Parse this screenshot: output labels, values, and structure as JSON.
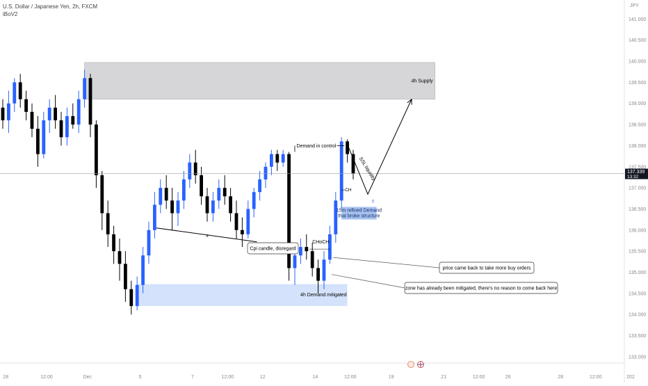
{
  "header": {
    "symbol": "U.S. Dollar / Japanese Yen, 2h, FXCM",
    "indicator": "iBoV2"
  },
  "chart_data": {
    "type": "candlestick",
    "title": "U.S. Dollar / Japanese Yen, 2h, FXCM",
    "currency_label": "JPY",
    "ylim": [
      132.85,
      141.45
    ],
    "y_ticks": [
      "141.000",
      "140.500",
      "140.000",
      "139.500",
      "139.000",
      "138.500",
      "138.000",
      "137.500",
      "137.000",
      "136.500",
      "136.000",
      "135.500",
      "135.000",
      "134.500",
      "134.000",
      "133.500",
      "133.000"
    ],
    "x_ticks": [
      {
        "label": "28",
        "t": 0.5
      },
      {
        "label": "12:00",
        "t": 7.5
      },
      {
        "label": "Dec",
        "t": 14.5
      },
      {
        "label": "5",
        "t": 23.5
      },
      {
        "label": "7",
        "t": 32.5
      },
      {
        "label": "12:00",
        "t": 38.5
      },
      {
        "label": "12",
        "t": 44.5
      },
      {
        "label": "14",
        "t": 53.5
      },
      {
        "label": "12:00",
        "t": 59.5
      },
      {
        "label": "19",
        "t": 66.5
      },
      {
        "label": "21",
        "t": 75.5
      },
      {
        "label": "12:00",
        "t": 81.5
      },
      {
        "label": "26",
        "t": 86.5
      },
      {
        "label": "28",
        "t": 95.5
      },
      {
        "label": "12:00",
        "t": 101.5
      },
      {
        "label": "202",
        "t": 107.5
      }
    ],
    "last_price": {
      "value": 137.339,
      "label": "137.339",
      "countdown": "13:32"
    },
    "candles": [
      [
        138.9,
        139.1,
        138.4,
        138.6
      ],
      [
        138.6,
        139.3,
        138.3,
        139.0
      ],
      [
        139.0,
        139.6,
        138.8,
        139.5
      ],
      [
        139.5,
        139.7,
        138.9,
        139.1
      ],
      [
        139.1,
        139.3,
        138.6,
        138.8
      ],
      [
        138.8,
        139.0,
        138.2,
        138.4
      ],
      [
        138.4,
        138.7,
        137.5,
        137.8
      ],
      [
        137.8,
        138.8,
        137.7,
        138.6
      ],
      [
        138.6,
        139.1,
        138.3,
        138.9
      ],
      [
        138.9,
        139.2,
        138.4,
        138.6
      ],
      [
        138.6,
        138.8,
        138.0,
        138.2
      ],
      [
        138.2,
        138.9,
        138.0,
        138.7
      ],
      [
        138.7,
        139.0,
        138.4,
        138.5
      ],
      [
        138.5,
        139.3,
        138.3,
        139.1
      ],
      [
        139.1,
        139.8,
        138.9,
        139.6
      ],
      [
        139.6,
        139.7,
        138.2,
        138.5
      ],
      [
        138.5,
        138.6,
        137.0,
        137.3
      ],
      [
        137.3,
        137.4,
        136.0,
        136.4
      ],
      [
        136.4,
        136.7,
        135.6,
        135.9
      ],
      [
        135.9,
        136.1,
        135.2,
        135.5
      ],
      [
        135.5,
        135.8,
        134.8,
        135.2
      ],
      [
        135.2,
        135.5,
        134.3,
        134.6
      ],
      [
        134.6,
        134.8,
        134.0,
        134.2
      ],
      [
        134.2,
        134.9,
        134.1,
        134.7
      ],
      [
        134.7,
        135.6,
        134.5,
        135.4
      ],
      [
        135.4,
        136.2,
        135.2,
        136.0
      ],
      [
        136.0,
        136.9,
        135.8,
        136.6
      ],
      [
        136.6,
        137.2,
        136.4,
        137.0
      ],
      [
        137.0,
        137.3,
        136.5,
        136.7
      ],
      [
        136.7,
        137.0,
        136.0,
        136.4
      ],
      [
        136.4,
        136.9,
        136.1,
        136.7
      ],
      [
        136.7,
        137.4,
        136.5,
        137.2
      ],
      [
        137.2,
        137.8,
        137.0,
        137.6
      ],
      [
        137.6,
        137.9,
        137.1,
        137.3
      ],
      [
        137.3,
        137.5,
        136.6,
        136.8
      ],
      [
        136.8,
        137.0,
        136.2,
        136.4
      ],
      [
        136.4,
        136.9,
        136.2,
        136.7
      ],
      [
        136.7,
        137.2,
        136.5,
        137.0
      ],
      [
        137.0,
        137.3,
        136.6,
        136.8
      ],
      [
        136.8,
        137.0,
        136.2,
        136.4
      ],
      [
        136.4,
        136.7,
        135.8,
        136.0
      ],
      [
        136.0,
        136.3,
        135.6,
        135.9
      ],
      [
        135.9,
        136.7,
        135.8,
        136.5
      ],
      [
        136.5,
        137.0,
        136.3,
        136.9
      ],
      [
        136.9,
        137.4,
        136.7,
        137.2
      ],
      [
        137.2,
        137.6,
        137.0,
        137.5
      ],
      [
        137.5,
        137.9,
        137.3,
        137.8
      ],
      [
        137.8,
        137.9,
        137.4,
        137.6
      ],
      [
        137.6,
        137.9,
        137.5,
        137.8
      ],
      [
        137.8,
        137.85,
        134.8,
        135.1
      ],
      [
        135.1,
        135.6,
        134.7,
        135.4
      ],
      [
        135.4,
        135.8,
        135.2,
        135.6
      ],
      [
        135.6,
        135.9,
        135.3,
        135.5
      ],
      [
        135.5,
        135.7,
        134.9,
        135.1
      ],
      [
        135.1,
        135.3,
        134.5,
        134.8
      ],
      [
        134.8,
        135.5,
        134.6,
        135.3
      ],
      [
        135.3,
        136.1,
        135.2,
        135.9
      ],
      [
        135.9,
        136.9,
        135.7,
        136.7
      ],
      [
        136.7,
        138.2,
        136.5,
        138.1
      ],
      [
        138.1,
        138.15,
        137.6,
        137.8
      ],
      [
        137.8,
        137.9,
        137.2,
        137.34
      ]
    ],
    "zones": [
      {
        "label": "4h Supply",
        "low": 139.1,
        "high": 139.97,
        "from": 14,
        "to": 74,
        "color": "#c8c8cc"
      },
      {
        "label": "4h Demand mitigated",
        "low": 134.2,
        "high": 134.72,
        "from": 23,
        "to": 59,
        "color": "#cfe0fb"
      },
      {
        "label": "15m refined Demand that broke structure",
        "low": 136.25,
        "high": 136.55,
        "from": 58,
        "to": 64,
        "color": "#9dbdf0"
      }
    ],
    "annotations": {
      "demand_in_control": "Demand in control",
      "ssl_liquidity": "SSL liquidity",
      "choch": "CHoCH",
      "ch": "CH",
      "x_mark": "x",
      "refined_demand_line1": "15m refined Demand",
      "refined_demand_line2": "that broke structure",
      "cpi_candle": "Cpi candle, disregard",
      "price_came_back": "price came back to take more buy orders",
      "zone_mitigated": "zone has already been mitigated, there's no reason to come back here",
      "zero": "0"
    },
    "projection": [
      {
        "t": 58.8,
        "p": 138.1
      },
      {
        "t": 62.5,
        "p": 136.85
      },
      {
        "t": 70.0,
        "p": 139.1
      }
    ]
  }
}
